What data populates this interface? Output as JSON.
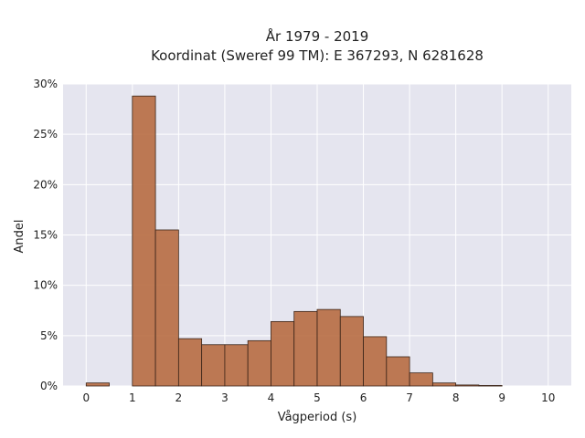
{
  "chart_data": {
    "type": "bar",
    "title": "År 1979 - 2019",
    "subtitle": "Koordinat (Sweref 99 TM): E 367293, N 6281628",
    "xlabel": "Vågperiod (s)",
    "ylabel": "Andel",
    "xlim": [
      -0.5,
      10.5
    ],
    "ylim": [
      0,
      0.3
    ],
    "bin_width": 0.5,
    "bins": [
      {
        "start": 0.0,
        "value": 0.003
      },
      {
        "start": 0.5,
        "value": 0.0
      },
      {
        "start": 1.0,
        "value": 0.288
      },
      {
        "start": 1.5,
        "value": 0.155
      },
      {
        "start": 2.0,
        "value": 0.047
      },
      {
        "start": 2.5,
        "value": 0.041
      },
      {
        "start": 3.0,
        "value": 0.041
      },
      {
        "start": 3.5,
        "value": 0.045
      },
      {
        "start": 4.0,
        "value": 0.064
      },
      {
        "start": 4.5,
        "value": 0.074
      },
      {
        "start": 5.0,
        "value": 0.076
      },
      {
        "start": 5.5,
        "value": 0.069
      },
      {
        "start": 6.0,
        "value": 0.049
      },
      {
        "start": 6.5,
        "value": 0.029
      },
      {
        "start": 7.0,
        "value": 0.013
      },
      {
        "start": 7.5,
        "value": 0.003
      },
      {
        "start": 8.0,
        "value": 0.001
      },
      {
        "start": 8.5,
        "value": 0.0005
      }
    ],
    "x_ticks": [
      "0",
      "1",
      "2",
      "3",
      "4",
      "5",
      "6",
      "7",
      "8",
      "9",
      "10"
    ],
    "y_ticks": [
      {
        "value": 0.0,
        "label": "0%"
      },
      {
        "value": 0.05,
        "label": "5%"
      },
      {
        "value": 0.1,
        "label": "10%"
      },
      {
        "value": 0.15,
        "label": "15%"
      },
      {
        "value": 0.2,
        "label": "20%"
      },
      {
        "value": 0.25,
        "label": "25%"
      },
      {
        "value": 0.3,
        "label": "30%"
      }
    ],
    "grid": true,
    "legend": "none",
    "colors": {
      "bar_fill": "#b96f45",
      "bar_stroke": "#3a2418",
      "plot_bg": "#e5e5ef",
      "grid": "#ffffff"
    }
  }
}
